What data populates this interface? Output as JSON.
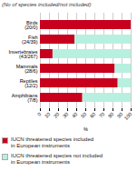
{
  "chart_data": {
    "type": "bar",
    "orientation": "horizontal",
    "stacked": true,
    "title": "(No of species included/not included)",
    "categories": [
      "Birds\n(20/0)",
      "Fish\n(24/39)",
      "Invertebrates\n(43/267)",
      "Mammals\n(28/6)",
      "Reptiles\n(12/2)",
      "Amphibians\n(7/8)"
    ],
    "series": [
      {
        "name": "IUCN threatened species included\nin European instruments",
        "color": "#c8001e",
        "values": [
          100.0,
          38.1,
          13.9,
          82.4,
          85.7,
          46.7
        ]
      },
      {
        "name": "IUCN threatened species not included\nin European instruments",
        "color": "#b8f0e0",
        "values": [
          0.0,
          61.9,
          86.1,
          17.6,
          14.3,
          53.3
        ]
      }
    ],
    "xlabel": "%",
    "xlim": [
      0,
      100
    ],
    "xticks": [
      0,
      10,
      20,
      30,
      40,
      50,
      60,
      70,
      80,
      90,
      100
    ],
    "grid": true,
    "legend": "bottom"
  }
}
